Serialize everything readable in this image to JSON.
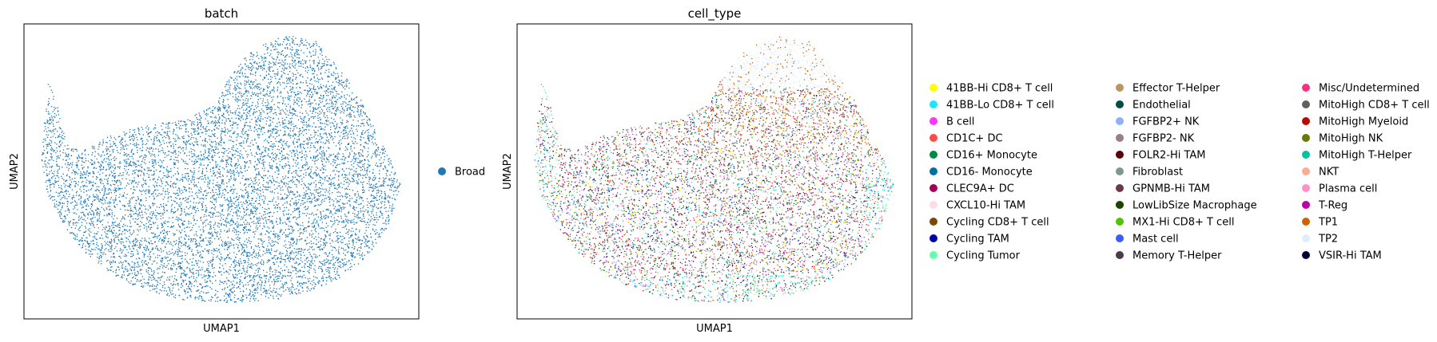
{
  "chart_data": [
    {
      "type": "scatter",
      "title": "batch",
      "xlabel": "UMAP1",
      "ylabel": "UMAP2",
      "xticks": "none",
      "yticks": "none",
      "grid": false,
      "legend": {
        "placement": "right",
        "entries": [
          {
            "label": "Broad",
            "color": "#1f77b4"
          }
        ]
      }
    },
    {
      "type": "scatter",
      "title": "cell_type",
      "xlabel": "UMAP1",
      "ylabel": "UMAP2",
      "xticks": "none",
      "yticks": "none",
      "grid": false,
      "legend": {
        "placement": "right",
        "columns": 3,
        "entries": [
          {
            "label": "41BB-Hi CD8+ T cell",
            "color": "#ffff00"
          },
          {
            "label": "41BB-Lo CD8+ T cell",
            "color": "#1ce6ff"
          },
          {
            "label": "B cell",
            "color": "#ff34ff"
          },
          {
            "label": "CD1C+ DC",
            "color": "#ff4a46"
          },
          {
            "label": "CD16+ Monocyte",
            "color": "#008941"
          },
          {
            "label": "CD16- Monocyte",
            "color": "#006fa6"
          },
          {
            "label": "CLEC9A+ DC",
            "color": "#a30059"
          },
          {
            "label": "CXCL10-Hi TAM",
            "color": "#ffdbe5"
          },
          {
            "label": "Cycling CD8+ T cell",
            "color": "#7a4900"
          },
          {
            "label": "Cycling TAM",
            "color": "#0000a6"
          },
          {
            "label": "Cycling Tumor",
            "color": "#63ffac"
          },
          {
            "label": "Effector T-Helper",
            "color": "#b79762"
          },
          {
            "label": "Endothelial",
            "color": "#004d43"
          },
          {
            "label": "FGFBP2+ NK",
            "color": "#8fb0ff"
          },
          {
            "label": "FGFBP2- NK",
            "color": "#997d87"
          },
          {
            "label": "FOLR2-Hi TAM",
            "color": "#5a0007"
          },
          {
            "label": "Fibroblast",
            "color": "#809693"
          },
          {
            "label": "GPNMB-Hi TAM",
            "color": "#6a3a4c"
          },
          {
            "label": "LowLibSize Macrophage",
            "color": "#1b4400"
          },
          {
            "label": "MX1-Hi CD8+ T cell",
            "color": "#4fc601"
          },
          {
            "label": "Mast cell",
            "color": "#3b5dff"
          },
          {
            "label": "Memory T-Helper",
            "color": "#4a3b53"
          },
          {
            "label": "Misc/Undetermined",
            "color": "#ff2f80"
          },
          {
            "label": "MitoHigh CD8+ T cell",
            "color": "#61615a"
          },
          {
            "label": "MitoHigh Myeloid",
            "color": "#ba0900"
          },
          {
            "label": "MitoHigh NK",
            "color": "#6b7900"
          },
          {
            "label": "MitoHigh T-Helper",
            "color": "#00c2a0"
          },
          {
            "label": "NKT",
            "color": "#ffaa92"
          },
          {
            "label": "Plasma cell",
            "color": "#ff90c9"
          },
          {
            "label": "T-Reg",
            "color": "#b903aa"
          },
          {
            "label": "TP1",
            "color": "#d16100"
          },
          {
            "label": "TP2",
            "color": "#ddefff"
          },
          {
            "label": "VSIR-Hi TAM",
            "color": "#000035"
          }
        ]
      }
    }
  ]
}
